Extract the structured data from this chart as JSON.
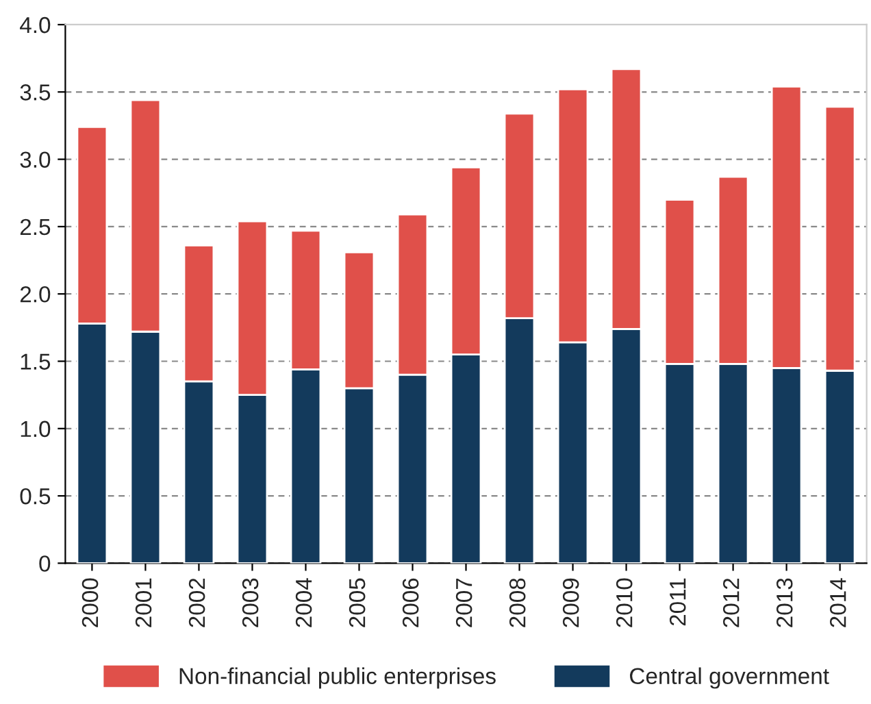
{
  "chart_data": {
    "type": "bar",
    "stacked": true,
    "categories": [
      "2000",
      "2001",
      "2002",
      "2003",
      "2004",
      "2005",
      "2006",
      "2007",
      "2008",
      "2009",
      "2010",
      "2011",
      "2012",
      "2013",
      "2014"
    ],
    "series": [
      {
        "name": "Central government",
        "color": "#133a5c",
        "values": [
          1.78,
          1.72,
          1.35,
          1.25,
          1.44,
          1.3,
          1.4,
          1.55,
          1.82,
          1.64,
          1.74,
          1.48,
          1.48,
          1.45,
          1.43
        ]
      },
      {
        "name": "Non-financial public enterprises",
        "color": "#e0504a",
        "values": [
          1.46,
          1.72,
          1.01,
          1.29,
          1.03,
          1.01,
          1.19,
          1.39,
          1.52,
          1.88,
          1.93,
          1.22,
          1.39,
          2.09,
          1.96
        ]
      }
    ],
    "ylim": [
      0,
      4.0
    ],
    "yticks": [
      0,
      {
        "value": 0.5,
        "label": "0.5"
      },
      {
        "value": 1.0,
        "label": "1.0"
      },
      {
        "value": 1.5,
        "label": "1.5"
      },
      {
        "value": 2.0,
        "label": "2.0"
      },
      {
        "value": 2.5,
        "label": "2.5"
      },
      {
        "value": 3.0,
        "label": "3.0"
      },
      {
        "value": 3.5,
        "label": "3.5"
      },
      {
        "value": 4.0,
        "label": "4.0"
      }
    ],
    "grid": "y",
    "legend": "bottom"
  }
}
